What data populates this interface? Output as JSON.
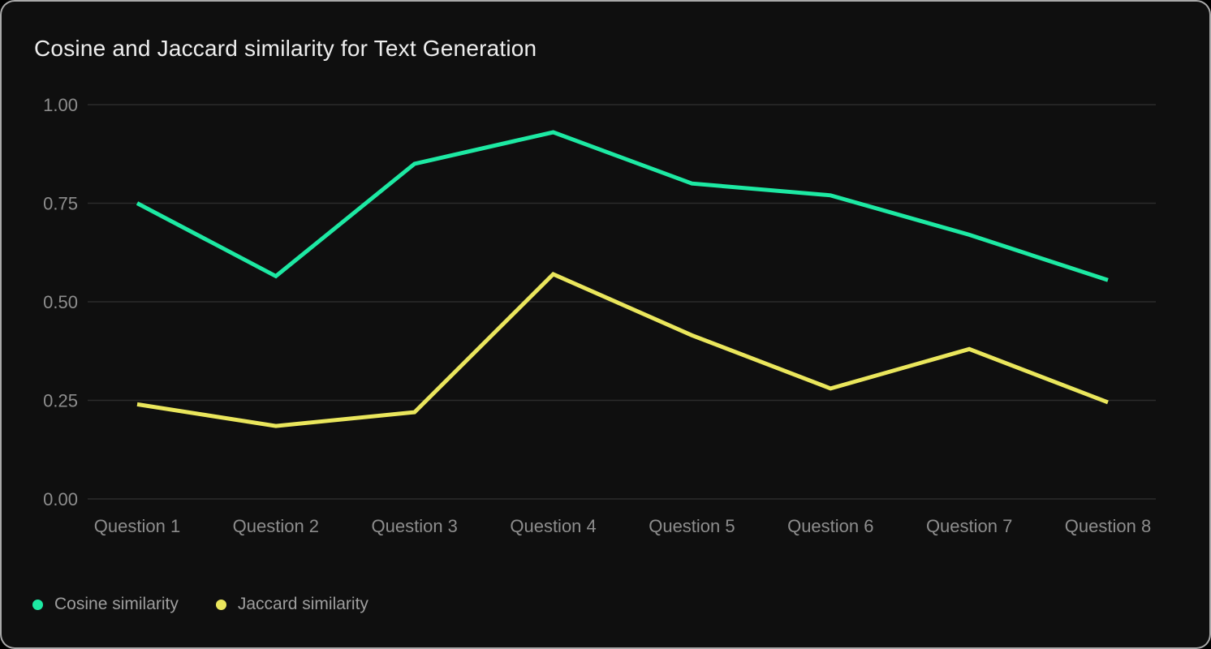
{
  "chart_data": {
    "type": "line",
    "title": "Cosine and Jaccard similarity for Text Generation",
    "categories": [
      "Question 1",
      "Question 2",
      "Question 3",
      "Question 4",
      "Question 5",
      "Question 6",
      "Question 7",
      "Question 8"
    ],
    "series": [
      {
        "name": "Cosine similarity",
        "color": "#1de9a3",
        "values": [
          0.75,
          0.565,
          0.85,
          0.93,
          0.8,
          0.77,
          0.67,
          0.555
        ]
      },
      {
        "name": "Jaccard similarity",
        "color": "#eae65c",
        "values": [
          0.24,
          0.185,
          0.22,
          0.57,
          0.415,
          0.28,
          0.38,
          0.245
        ]
      }
    ],
    "y_ticks": [
      "1.00",
      "0.75",
      "0.50",
      "0.25",
      "0.00"
    ],
    "ylim": [
      0,
      1
    ],
    "xlabel": "",
    "ylabel": "",
    "grid": "horizontal",
    "legend_position": "bottom-left"
  },
  "style": {
    "grid_color": "#2c2c2c",
    "tick_label_color": "#8d8d8d",
    "title_color": "#ededed",
    "background_color": "#0f0f0f",
    "line_width": 5
  }
}
